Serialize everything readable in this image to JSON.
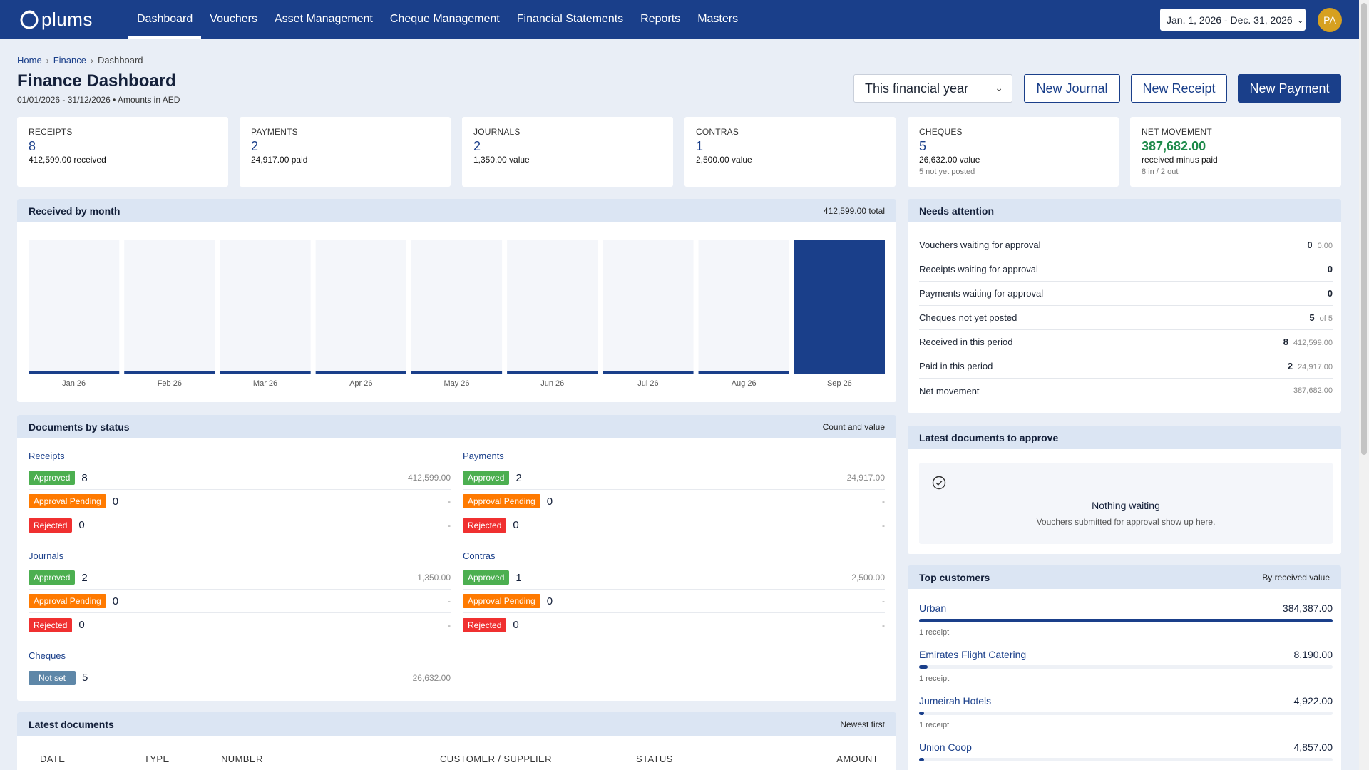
{
  "app": {
    "logo_text": "plums"
  },
  "nav": {
    "items": [
      {
        "label": "Dashboard",
        "active": true
      },
      {
        "label": "Vouchers"
      },
      {
        "label": "Asset Management"
      },
      {
        "label": "Cheque Management"
      },
      {
        "label": "Financial Statements"
      },
      {
        "label": "Reports"
      },
      {
        "label": "Masters"
      }
    ],
    "date_range": "Jan. 1, 2026 - Dec. 31, 2026",
    "avatar_initials": "PA"
  },
  "breadcrumb": [
    "Home",
    "Finance",
    "Dashboard"
  ],
  "header": {
    "title": "Finance Dashboard",
    "subtitle": "01/01/2026 - 31/12/2026 • Amounts in AED",
    "period_select": "This financial year",
    "buttons": {
      "new_journal": "New Journal",
      "new_receipt": "New Receipt",
      "new_payment": "New Payment"
    }
  },
  "kpis": [
    {
      "label": "RECEIPTS",
      "value": "8",
      "sub": "412,599.00 received"
    },
    {
      "label": "PAYMENTS",
      "value": "2",
      "sub": "24,917.00 paid"
    },
    {
      "label": "JOURNALS",
      "value": "2",
      "sub": "1,350.00 value"
    },
    {
      "label": "CONTRAS",
      "value": "1",
      "sub": "2,500.00 value"
    },
    {
      "label": "CHEQUES",
      "value": "5",
      "sub": "26,632.00 value",
      "sub2": "5 not yet posted"
    },
    {
      "label": "NET MOVEMENT",
      "value": "387,682.00",
      "sub": "received minus paid",
      "sub2": "8 in / 2 out"
    }
  ],
  "received_chart": {
    "title": "Received by month",
    "meta": "412,599.00 total"
  },
  "chart_data": {
    "type": "bar",
    "categories": [
      "Jan 26",
      "Feb 26",
      "Mar 26",
      "Apr 26",
      "May 26",
      "Jun 26",
      "Jul 26",
      "Aug 26",
      "Sep 26"
    ],
    "values": [
      0,
      0,
      0,
      0,
      0,
      1800,
      0,
      0,
      410799
    ],
    "title": "Received by month",
    "xlabel": "",
    "ylabel": "",
    "ylim": [
      0,
      410799
    ]
  },
  "needs_attention": {
    "title": "Needs attention",
    "rows": [
      {
        "label": "Vouchers waiting for approval",
        "count": "0",
        "amount": "0.00"
      },
      {
        "label": "Receipts waiting for approval",
        "count": "0",
        "amount": ""
      },
      {
        "label": "Payments waiting for approval",
        "count": "0",
        "amount": ""
      },
      {
        "label": "Cheques not yet posted",
        "count": "5",
        "amount": "of 5"
      },
      {
        "label": "Received in this period",
        "count": "8",
        "amount": "412,599.00"
      },
      {
        "label": "Paid in this period",
        "count": "2",
        "amount": "24,917.00"
      },
      {
        "label": "Net movement",
        "count": "",
        "amount": "387,682.00"
      }
    ]
  },
  "docs_status": {
    "title": "Documents by status",
    "meta": "Count and value",
    "groups": {
      "receipts": {
        "title": "Receipts",
        "rows": [
          {
            "status": "Approved",
            "count": "8",
            "amount": "412,599.00"
          },
          {
            "status": "Approval Pending",
            "count": "0",
            "amount": "-"
          },
          {
            "status": "Rejected",
            "count": "0",
            "amount": "-"
          }
        ]
      },
      "payments": {
        "title": "Payments",
        "rows": [
          {
            "status": "Approved",
            "count": "2",
            "amount": "24,917.00"
          },
          {
            "status": "Approval Pending",
            "count": "0",
            "amount": "-"
          },
          {
            "status": "Rejected",
            "count": "0",
            "amount": "-"
          }
        ]
      },
      "journals": {
        "title": "Journals",
        "rows": [
          {
            "status": "Approved",
            "count": "2",
            "amount": "1,350.00"
          },
          {
            "status": "Approval Pending",
            "count": "0",
            "amount": "-"
          },
          {
            "status": "Rejected",
            "count": "0",
            "amount": "-"
          }
        ]
      },
      "contras": {
        "title": "Contras",
        "rows": [
          {
            "status": "Approved",
            "count": "1",
            "amount": "2,500.00"
          },
          {
            "status": "Approval Pending",
            "count": "0",
            "amount": "-"
          },
          {
            "status": "Rejected",
            "count": "0",
            "amount": "-"
          }
        ]
      },
      "cheques": {
        "title": "Cheques",
        "rows": [
          {
            "status": "Not set",
            "count": "5",
            "amount": "26,632.00"
          }
        ]
      }
    }
  },
  "latest_approve": {
    "title": "Latest documents to approve",
    "empty_title": "Nothing waiting",
    "empty_sub": "Vouchers submitted for approval show up here."
  },
  "top_customers": {
    "title": "Top customers",
    "meta": "By received value",
    "items": [
      {
        "name": "Urban",
        "amount": "384,387.00",
        "note": "1 receipt",
        "share": 1.0
      },
      {
        "name": "Emirates Flight Catering",
        "amount": "8,190.00",
        "note": "1 receipt",
        "share": 0.0213
      },
      {
        "name": "Jumeirah Hotels",
        "amount": "4,922.00",
        "note": "1 receipt",
        "share": 0.0128
      },
      {
        "name": "Union Coop",
        "amount": "4,857.00",
        "note": "",
        "share": 0.0126
      }
    ]
  },
  "latest_docs": {
    "title": "Latest documents",
    "meta": "Newest first",
    "columns": [
      "DATE",
      "TYPE",
      "NUMBER",
      "CUSTOMER / SUPPLIER",
      "STATUS",
      "AMOUNT"
    ]
  },
  "colors": {
    "brand": "#1a3f8a",
    "approved": "#4caf50",
    "pending": "#ff7a00",
    "rejected": "#f03030",
    "not_set": "#5e87a8",
    "positive": "#1e8a4a"
  }
}
